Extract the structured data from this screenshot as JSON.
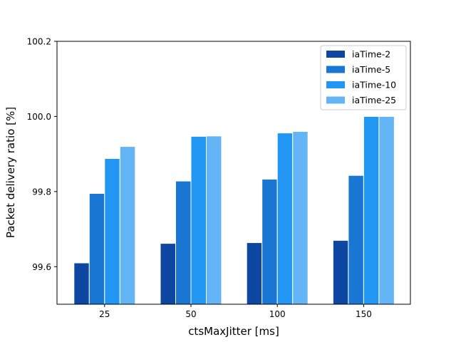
{
  "chart_data": {
    "type": "bar",
    "title": "",
    "xlabel": "ctsMaxJitter [ms]",
    "ylabel": "Packet delivery ratio [%]",
    "categories": [
      "25",
      "50",
      "100",
      "150"
    ],
    "ylim": [
      99.5,
      100.2
    ],
    "yticks": [
      "99.6",
      "99.8",
      "100.0",
      "100.2"
    ],
    "grid": false,
    "legend_position": "top-right",
    "series": [
      {
        "name": "iaTime-2",
        "color": "#0d47a1",
        "values": [
          99.61,
          99.662,
          99.664,
          99.67
        ]
      },
      {
        "name": "iaTime-5",
        "color": "#1976d2",
        "values": [
          99.795,
          99.828,
          99.833,
          99.843
        ]
      },
      {
        "name": "iaTime-10",
        "color": "#2196f3",
        "values": [
          99.888,
          99.947,
          99.956,
          100.0
        ]
      },
      {
        "name": "iaTime-25",
        "color": "#64b5f6",
        "values": [
          99.92,
          99.948,
          99.96,
          100.0
        ]
      }
    ]
  }
}
